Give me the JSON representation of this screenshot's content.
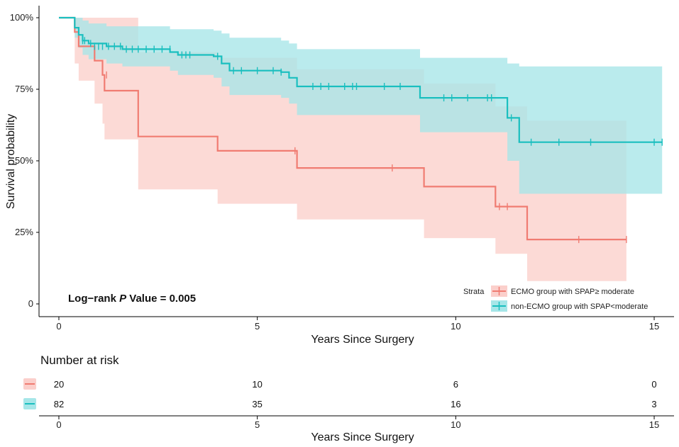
{
  "chart_data": {
    "type": "line",
    "subtype": "kaplan-meier",
    "ylabel": "Survival probability",
    "xlabel": "Years Since Surgery",
    "xlim": [
      -0.5,
      15.5
    ],
    "ylim": [
      0,
      1
    ],
    "xticks": [
      0,
      5,
      10,
      15
    ],
    "xtick_labels": [
      "0",
      "5",
      "10",
      "15"
    ],
    "yticks": [
      0,
      0.25,
      0.5,
      0.75,
      1.0
    ],
    "ytick_labels": [
      "0",
      "25%",
      "50%",
      "75%",
      "100%"
    ],
    "annotation_prefix": "Log−rank ",
    "annotation_italic": "P",
    "annotation_suffix": " Value = 0.005",
    "legend_title": "Strata",
    "legend_position": "bottom-right",
    "series": [
      {
        "name": "ECMO group with SPAP≥ moderate",
        "color": "#F07C72",
        "band_color": "#FBCFCB",
        "steps": [
          [
            0,
            1.0
          ],
          [
            0.4,
            0.95
          ],
          [
            0.5,
            0.9
          ],
          [
            0.9,
            0.85
          ],
          [
            1.1,
            0.8
          ],
          [
            1.15,
            0.745
          ],
          [
            2.0,
            0.585
          ],
          [
            4.0,
            0.535
          ],
          [
            6.0,
            0.475
          ],
          [
            9.2,
            0.41
          ],
          [
            11.0,
            0.34
          ],
          [
            11.8,
            0.225
          ],
          [
            14.3,
            0.225
          ]
        ],
        "upper": [
          [
            0,
            1.0
          ],
          [
            0.4,
            1.0
          ],
          [
            0.5,
            1.0
          ],
          [
            0.9,
            1.0
          ],
          [
            1.1,
            1.0
          ],
          [
            1.15,
            1.0
          ],
          [
            2.0,
            0.88
          ],
          [
            4.0,
            0.86
          ],
          [
            6.0,
            0.82
          ],
          [
            9.2,
            0.77
          ],
          [
            11.0,
            0.69
          ],
          [
            11.8,
            0.64
          ],
          [
            14.3,
            0.64
          ]
        ],
        "lower": [
          [
            0,
            1.0
          ],
          [
            0.4,
            0.84
          ],
          [
            0.5,
            0.78
          ],
          [
            0.9,
            0.7
          ],
          [
            1.1,
            0.63
          ],
          [
            1.15,
            0.575
          ],
          [
            2.0,
            0.4
          ],
          [
            4.0,
            0.35
          ],
          [
            6.0,
            0.295
          ],
          [
            9.2,
            0.23
          ],
          [
            11.0,
            0.175
          ],
          [
            11.8,
            0.08
          ],
          [
            14.3,
            0.08
          ]
        ],
        "censors": [
          [
            1.2,
            0.8
          ],
          [
            5.95,
            0.535
          ],
          [
            8.4,
            0.475
          ],
          [
            11.1,
            0.34
          ],
          [
            11.3,
            0.34
          ],
          [
            13.1,
            0.225
          ],
          [
            14.3,
            0.225
          ]
        ]
      },
      {
        "name": "non-ECMO group with SPAP<moderate",
        "color": "#1ABFBF",
        "band_color": "#A6E6E8",
        "steps": [
          [
            0,
            1.0
          ],
          [
            0.4,
            0.965
          ],
          [
            0.5,
            0.94
          ],
          [
            0.6,
            0.92
          ],
          [
            0.75,
            0.91
          ],
          [
            1.2,
            0.9
          ],
          [
            1.6,
            0.89
          ],
          [
            2.8,
            0.88
          ],
          [
            3.0,
            0.87
          ],
          [
            3.9,
            0.865
          ],
          [
            4.1,
            0.84
          ],
          [
            4.3,
            0.815
          ],
          [
            5.6,
            0.81
          ],
          [
            5.8,
            0.79
          ],
          [
            6.0,
            0.76
          ],
          [
            9.1,
            0.72
          ],
          [
            11.3,
            0.65
          ],
          [
            11.6,
            0.565
          ],
          [
            15.2,
            0.565
          ]
        ],
        "upper": [
          [
            0,
            1.0
          ],
          [
            0.4,
            1.0
          ],
          [
            0.5,
            1.0
          ],
          [
            0.6,
            0.99
          ],
          [
            0.75,
            0.98
          ],
          [
            1.2,
            0.97
          ],
          [
            1.6,
            0.97
          ],
          [
            2.8,
            0.96
          ],
          [
            3.0,
            0.96
          ],
          [
            3.9,
            0.955
          ],
          [
            4.1,
            0.945
          ],
          [
            4.3,
            0.93
          ],
          [
            5.6,
            0.92
          ],
          [
            5.8,
            0.91
          ],
          [
            6.0,
            0.89
          ],
          [
            9.1,
            0.86
          ],
          [
            11.3,
            0.84
          ],
          [
            11.6,
            0.83
          ],
          [
            15.2,
            0.83
          ]
        ],
        "lower": [
          [
            0,
            1.0
          ],
          [
            0.4,
            0.93
          ],
          [
            0.5,
            0.895
          ],
          [
            0.6,
            0.87
          ],
          [
            0.75,
            0.855
          ],
          [
            1.2,
            0.84
          ],
          [
            1.6,
            0.83
          ],
          [
            2.8,
            0.815
          ],
          [
            3.0,
            0.8
          ],
          [
            3.9,
            0.79
          ],
          [
            4.1,
            0.76
          ],
          [
            4.3,
            0.73
          ],
          [
            5.6,
            0.72
          ],
          [
            5.8,
            0.7
          ],
          [
            6.0,
            0.66
          ],
          [
            9.1,
            0.6
          ],
          [
            11.3,
            0.5
          ],
          [
            11.6,
            0.385
          ],
          [
            15.2,
            0.385
          ]
        ],
        "censors": [
          [
            0.6,
            0.92
          ],
          [
            0.65,
            0.92
          ],
          [
            0.8,
            0.91
          ],
          [
            0.9,
            0.9
          ],
          [
            1.0,
            0.9
          ],
          [
            1.1,
            0.9
          ],
          [
            1.25,
            0.9
          ],
          [
            1.4,
            0.9
          ],
          [
            1.55,
            0.9
          ],
          [
            1.7,
            0.89
          ],
          [
            1.85,
            0.89
          ],
          [
            2.0,
            0.89
          ],
          [
            2.2,
            0.89
          ],
          [
            2.4,
            0.89
          ],
          [
            2.6,
            0.89
          ],
          [
            2.8,
            0.89
          ],
          [
            3.1,
            0.87
          ],
          [
            3.2,
            0.87
          ],
          [
            3.3,
            0.87
          ],
          [
            4.0,
            0.865
          ],
          [
            4.4,
            0.815
          ],
          [
            4.6,
            0.815
          ],
          [
            5.0,
            0.815
          ],
          [
            5.4,
            0.815
          ],
          [
            5.6,
            0.81
          ],
          [
            6.4,
            0.76
          ],
          [
            6.6,
            0.76
          ],
          [
            6.8,
            0.76
          ],
          [
            7.2,
            0.76
          ],
          [
            7.4,
            0.76
          ],
          [
            7.5,
            0.76
          ],
          [
            8.2,
            0.76
          ],
          [
            8.6,
            0.76
          ],
          [
            9.7,
            0.72
          ],
          [
            9.9,
            0.72
          ],
          [
            10.3,
            0.72
          ],
          [
            10.8,
            0.72
          ],
          [
            10.9,
            0.72
          ],
          [
            11.4,
            0.65
          ],
          [
            11.9,
            0.565
          ],
          [
            12.6,
            0.565
          ],
          [
            13.4,
            0.565
          ],
          [
            15.0,
            0.565
          ],
          [
            15.2,
            0.565
          ]
        ]
      }
    ],
    "risk_table": {
      "title": "Number at risk",
      "xlabel": "Years Since Surgery",
      "times": [
        0,
        5,
        10,
        15
      ],
      "time_labels": [
        "0",
        "5",
        "10",
        "15"
      ],
      "rows": [
        {
          "values": [
            "20",
            "10",
            "6",
            "0"
          ]
        },
        {
          "values": [
            "82",
            "35",
            "16",
            "3"
          ]
        }
      ]
    }
  }
}
